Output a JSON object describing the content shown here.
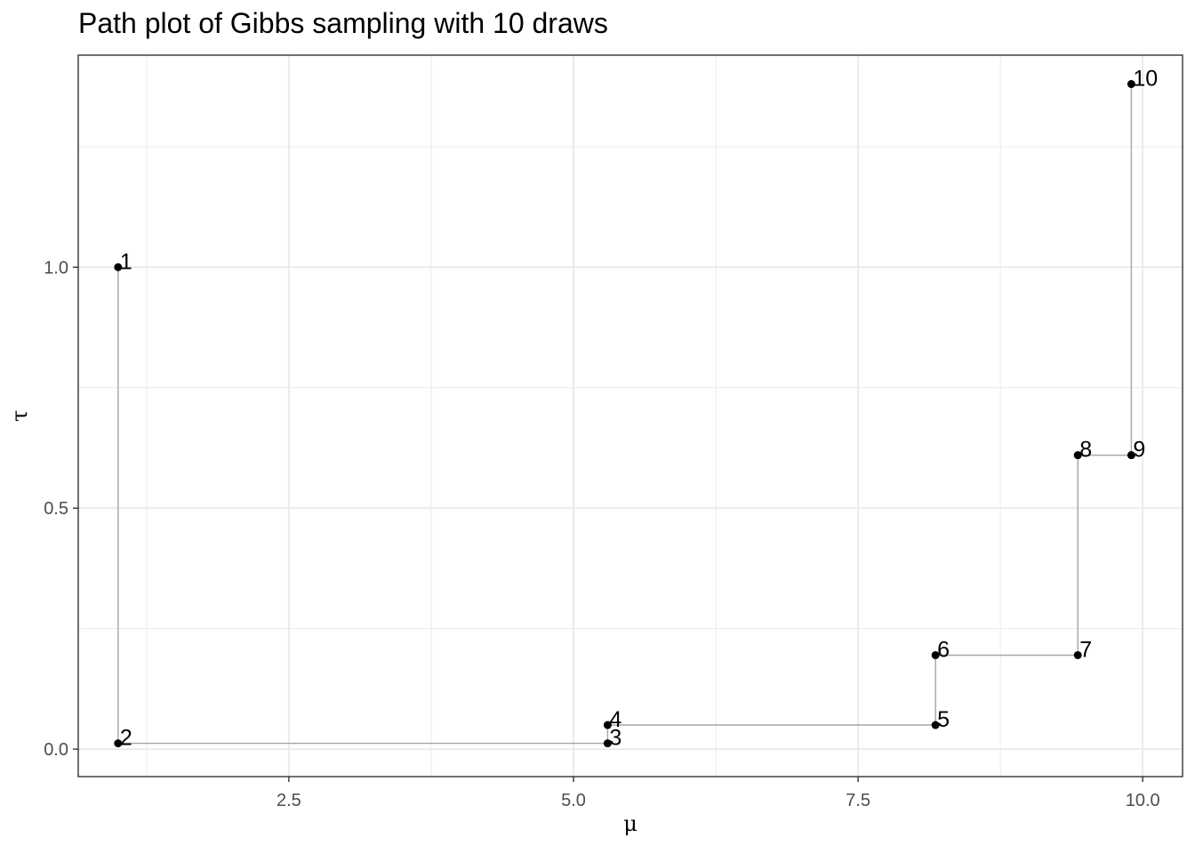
{
  "chart_data": {
    "type": "scatter",
    "title": "Path plot of Gibbs sampling with 10 draws",
    "xlabel": "μ",
    "ylabel": "τ",
    "xlim": [
      0.65,
      10.35
    ],
    "ylim": [
      -0.057,
      1.44
    ],
    "x_ticks": [
      2.5,
      5.0,
      7.5,
      10.0
    ],
    "x_tick_labels": [
      "2.5",
      "5.0",
      "7.5",
      "10.0"
    ],
    "y_ticks": [
      0.0,
      0.5,
      1.0
    ],
    "y_tick_labels": [
      "0.0",
      "0.5",
      "1.0"
    ],
    "grid": true,
    "path": "step",
    "points": [
      {
        "label": "1",
        "x": 1.0,
        "y": 1.0
      },
      {
        "label": "2",
        "x": 1.0,
        "y": 0.012
      },
      {
        "label": "3",
        "x": 5.3,
        "y": 0.012
      },
      {
        "label": "4",
        "x": 5.3,
        "y": 0.05
      },
      {
        "label": "5",
        "x": 8.18,
        "y": 0.05
      },
      {
        "label": "6",
        "x": 8.18,
        "y": 0.195
      },
      {
        "label": "7",
        "x": 9.43,
        "y": 0.195
      },
      {
        "label": "8",
        "x": 9.43,
        "y": 0.61
      },
      {
        "label": "9",
        "x": 9.9,
        "y": 0.61
      },
      {
        "label": "10",
        "x": 9.9,
        "y": 1.38
      }
    ],
    "colors": {
      "points": "#000000",
      "path": "#a6a6a6",
      "grid": "#ebebeb",
      "panel_border": "#333333"
    }
  }
}
